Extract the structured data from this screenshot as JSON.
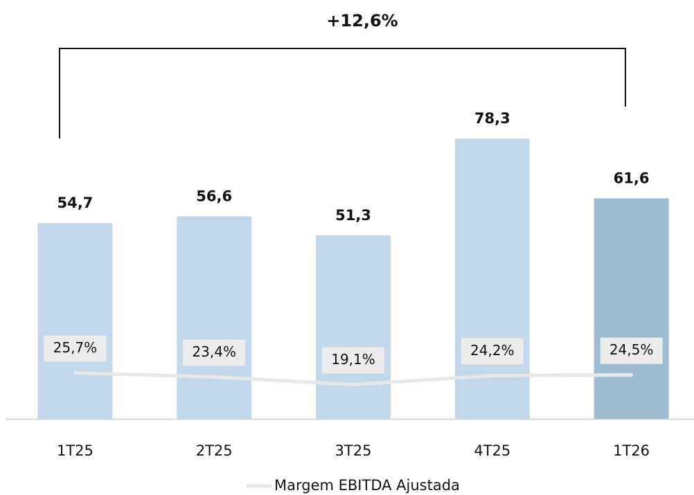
{
  "chart_data": {
    "type": "bar",
    "annotation": "+12,6%",
    "categories": [
      "1T25",
      "2T25",
      "3T25",
      "4T25",
      "1T26"
    ],
    "series": [
      {
        "values": [
          54.7,
          56.6,
          51.3,
          78.3,
          61.6
        ],
        "value_labels": [
          "54,7",
          "56,6",
          "51,3",
          "78,3",
          "61,6"
        ],
        "colors": [
          "#c3d9eb",
          "#c3d9eb",
          "#c3d9eb",
          "#c3d9eb",
          "#9dbed1"
        ]
      },
      {
        "name": "Margem EBITDA Ajustada",
        "type": "line",
        "axis": "y2",
        "color": "#e8e8e8",
        "values": [
          25.7,
          23.4,
          19.1,
          24.2,
          24.5
        ],
        "value_labels": [
          "25,7%",
          "23,4%",
          "19,1%",
          "24,2%",
          "24,5%"
        ]
      }
    ],
    "ylim": [
      0,
      100
    ],
    "y2lim": [
      0,
      200
    ]
  }
}
